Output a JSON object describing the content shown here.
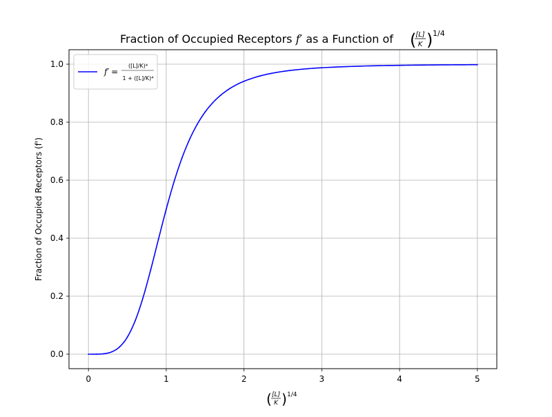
{
  "chart_data": {
    "type": "line",
    "title": {
      "text": "Fraction of Occupied Receptors ",
      "symbol": "f′",
      "mid": " as a Function of ",
      "lbracket": "(",
      "num": "[L]",
      "den": "K",
      "rbracket": ")",
      "exp": "1/4"
    },
    "xlabel": {
      "lbracket": "(",
      "num": "[L]",
      "den": "K",
      "rbracket": ")",
      "exp": "1/4"
    },
    "ylabel": "Fraction of Occupied Receptors (f')",
    "xlim": [
      -0.25,
      5.25
    ],
    "ylim": [
      -0.05,
      1.05
    ],
    "x_ticks": [
      "0",
      "1",
      "2",
      "3",
      "4",
      "5"
    ],
    "y_ticks": [
      "0.0",
      "0.2",
      "0.4",
      "0.6",
      "0.8",
      "1.0"
    ],
    "grid": true,
    "legend_position": "top-left",
    "series": [
      {
        "name": "f′ = ([L]/K)^4 / (1 + ([L]/K)^4)",
        "legend": {
          "lhs": "f′",
          "eq": "=",
          "num": "([L]/K)⁴",
          "den": "1 + ([L]/K)⁴"
        },
        "color": "#0000ff",
        "x": [
          0,
          0.1,
          0.2,
          0.3,
          0.4,
          0.5,
          0.6,
          0.7,
          0.8,
          0.9,
          1.0,
          1.1,
          1.2,
          1.3,
          1.4,
          1.5,
          1.6,
          1.7,
          1.8,
          1.9,
          2.0,
          2.2,
          2.4,
          2.6,
          2.8,
          3.0,
          3.5,
          4.0,
          4.5,
          5.0
        ],
        "y": [
          0,
          0.0001,
          0.0016,
          0.008,
          0.025,
          0.0588,
          0.1147,
          0.1936,
          0.2906,
          0.3962,
          0.5,
          0.5942,
          0.6747,
          0.7407,
          0.7935,
          0.8351,
          0.8676,
          0.893,
          0.913,
          0.9288,
          0.9412,
          0.9591,
          0.9708,
          0.9786,
          0.984,
          0.9878,
          0.9934,
          0.9961,
          0.9976,
          0.9984
        ]
      }
    ]
  }
}
